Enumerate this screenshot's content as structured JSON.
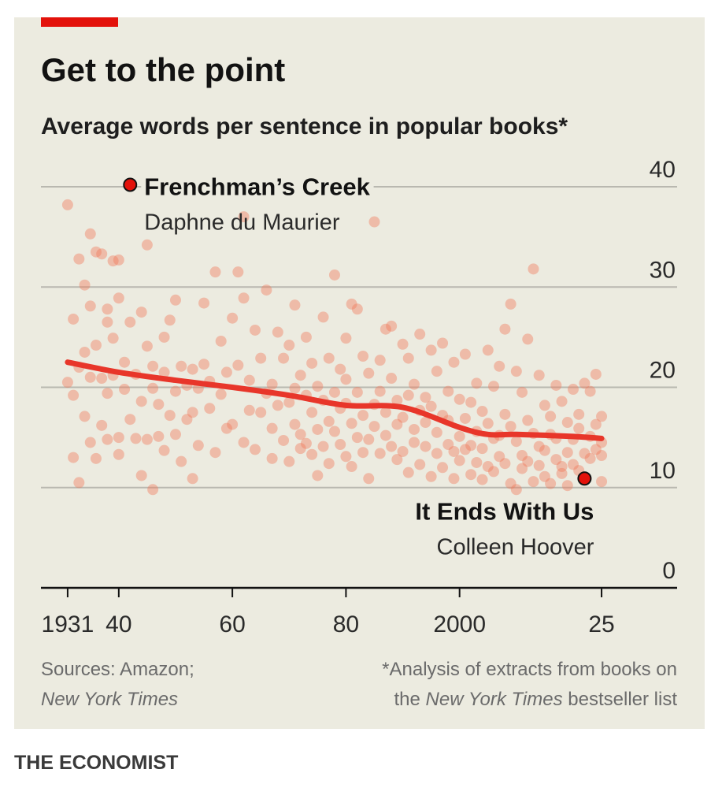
{
  "chart_data": {
    "type": "scatter",
    "title": "Get to the point",
    "subtitle": "Average words per sentence in popular books*",
    "points": {
      "color": "#f0795a",
      "x": [
        1931,
        1931,
        1932,
        1932,
        1932,
        1933,
        1933,
        1933,
        1934,
        1934,
        1934,
        1935,
        1935,
        1935,
        1935,
        1936,
        1936,
        1936,
        1937,
        1937,
        1937,
        1938,
        1938,
        1938,
        1938,
        1939,
        1939,
        1939,
        1940,
        1940,
        1940,
        1940,
        1941,
        1941,
        1942,
        1942,
        1943,
        1943,
        1944,
        1944,
        1944,
        1945,
        1945,
        1945,
        1946,
        1946,
        1946,
        1947,
        1947,
        1948,
        1948,
        1948,
        1949,
        1949,
        1950,
        1950,
        1950,
        1951,
        1951,
        1952,
        1952,
        1953,
        1953,
        1953,
        1954,
        1954,
        1955,
        1955,
        1956,
        1956,
        1957,
        1957,
        1958,
        1958,
        1959,
        1959,
        1960,
        1960,
        1961,
        1961,
        1962,
        1962,
        1962,
        1963,
        1963,
        1964,
        1964,
        1965,
        1965,
        1966,
        1966,
        1967,
        1967,
        1967,
        1968,
        1968,
        1969,
        1969,
        1970,
        1970,
        1970,
        1971,
        1971,
        1971,
        1972,
        1972,
        1972,
        1973,
        1973,
        1973,
        1974,
        1974,
        1974,
        1975,
        1975,
        1975,
        1976,
        1976,
        1976,
        1977,
        1977,
        1977,
        1978,
        1978,
        1978,
        1979,
        1979,
        1979,
        1980,
        1980,
        1980,
        1980,
        1981,
        1981,
        1981,
        1982,
        1982,
        1982,
        1983,
        1983,
        1983,
        1984,
        1984,
        1984,
        1985,
        1985,
        1985,
        1986,
        1986,
        1986,
        1987,
        1987,
        1987,
        1988,
        1988,
        1988,
        1989,
        1989,
        1989,
        1990,
        1990,
        1990,
        1991,
        1991,
        1991,
        1992,
        1992,
        1992,
        1993,
        1993,
        1993,
        1994,
        1994,
        1994,
        1995,
        1995,
        1995,
        1996,
        1996,
        1996,
        1997,
        1997,
        1997,
        1998,
        1998,
        1998,
        1999,
        1999,
        1999,
        2000,
        2000,
        2000,
        2001,
        2001,
        2001,
        2002,
        2002,
        2002,
        2003,
        2003,
        2003,
        2004,
        2004,
        2004,
        2005,
        2005,
        2005,
        2006,
        2006,
        2006,
        2007,
        2007,
        2007,
        2008,
        2008,
        2008,
        2009,
        2009,
        2009,
        2010,
        2010,
        2010,
        2011,
        2011,
        2011,
        2012,
        2012,
        2012,
        2013,
        2013,
        2013,
        2014,
        2014,
        2014,
        2015,
        2015,
        2015,
        2016,
        2016,
        2016,
        2017,
        2017,
        2017,
        2018,
        2018,
        2018,
        2019,
        2019,
        2019,
        2020,
        2020,
        2020,
        2021,
        2021,
        2021,
        2022,
        2022,
        2023,
        2023,
        2023,
        2024,
        2024,
        2024,
        2025,
        2025,
        2025,
        2025
      ],
      "values": [
        38.2,
        20.5,
        26.8,
        13,
        19.2,
        32.8,
        10.5,
        22,
        30.2,
        17.1,
        23.5,
        35.3,
        28.1,
        14.5,
        21,
        33.5,
        24.2,
        12.9,
        33.3,
        16.2,
        20.9,
        26.5,
        19.4,
        14.8,
        27.8,
        32.6,
        24.9,
        21.2,
        32.7,
        28.9,
        13.3,
        15,
        19.8,
        22.5,
        26.5,
        16.8,
        14.9,
        21.3,
        27.5,
        11.2,
        18.6,
        34.2,
        24.1,
        14.8,
        9.8,
        19.9,
        22.1,
        18.3,
        15.1,
        25,
        13.7,
        21.5,
        26.7,
        17.2,
        28.7,
        19.6,
        15.3,
        22.1,
        12.6,
        20.2,
        16.8,
        17.5,
        10.9,
        21.8,
        19.9,
        14.2,
        28.4,
        22.3,
        20.6,
        17.9,
        31.5,
        13.5,
        19.3,
        24.6,
        21.5,
        15.9,
        26.9,
        16.3,
        31.5,
        22.2,
        37,
        14.5,
        28.9,
        20.7,
        17.7,
        25.7,
        13.8,
        22.9,
        17.5,
        29.7,
        19.4,
        20.3,
        15.9,
        12.9,
        25.5,
        18.2,
        22.9,
        14.7,
        24.2,
        18.5,
        12.6,
        28.2,
        16.3,
        19.9,
        21.2,
        15.3,
        13.9,
        25,
        19.2,
        14.4,
        17.5,
        13.3,
        22.4,
        20.1,
        15.8,
        11.2,
        27,
        18.7,
        14.1,
        22.9,
        16.6,
        12.4,
        31.2,
        19.5,
        15.6,
        21.8,
        14.3,
        17.9,
        24.9,
        13.1,
        18.4,
        20.8,
        28.3,
        16.4,
        12.1,
        27.8,
        19.5,
        15,
        23.1,
        17.2,
        13.5,
        21.4,
        14.8,
        10.9,
        36.5,
        18.3,
        16.1,
        19.6,
        13.4,
        22.7,
        25.8,
        15.2,
        17.5,
        26.1,
        20.9,
        14.1,
        18.7,
        16.3,
        12.8,
        24.3,
        17,
        13.6,
        22.9,
        19.2,
        11.5,
        20.3,
        15.8,
        14.5,
        25.3,
        17.7,
        12.3,
        19,
        14.1,
        16.5,
        23.7,
        18.1,
        11.1,
        21.6,
        15.5,
        13.4,
        24.4,
        17.2,
        12,
        19.6,
        14.3,
        16.7,
        22.5,
        13.6,
        10.9,
        18.8,
        15.1,
        12.7,
        23.3,
        16.9,
        13.8,
        18.5,
        14.2,
        11.3,
        20.4,
        15.6,
        12.5,
        17.6,
        13.9,
        10.8,
        23.7,
        16.4,
        12.1,
        20.1,
        14.9,
        11.6,
        22.1,
        15.2,
        13.1,
        25.8,
        17.3,
        12.4,
        28.3,
        16.1,
        10.4,
        21.6,
        14.6,
        9.8,
        19.5,
        13.2,
        11.9,
        24.8,
        16.7,
        12.6,
        31.8,
        15.4,
        10.6,
        21.2,
        14.1,
        12.2,
        18.2,
        13.7,
        11.1,
        17.1,
        15.3,
        10.4,
        20.2,
        14.9,
        12.8,
        18.6,
        12.1,
        11.4,
        16.5,
        13.5,
        10.2,
        19.8,
        14.8,
        12.3,
        17.3,
        15.9,
        11.7,
        20.4,
        13.4,
        19.6,
        15.1,
        12.9,
        21.3,
        16.3,
        13.8,
        17.1,
        14.5,
        10.6,
        13.2
      ]
    },
    "trend": {
      "color": "#e8362a",
      "x": [
        1931,
        1940,
        1950,
        1960,
        1970,
        1980,
        1990,
        2000,
        2005,
        2010,
        2020,
        2025
      ],
      "values": [
        22.5,
        21.5,
        20.7,
        20,
        19.2,
        18.2,
        18,
        16,
        15.3,
        15.3,
        15.1,
        14.9
      ]
    },
    "annotations": [
      {
        "x": 1942,
        "y": 40.2,
        "title": "Frenchman’s Creek",
        "subtitle": "Daphne du Maurier",
        "color": "#e3120b"
      },
      {
        "x": 2022,
        "y": 10.9,
        "title": "It Ends With Us",
        "subtitle": "Colleen Hoover",
        "color": "#e3120b"
      }
    ],
    "xlim": [
      1926.3,
      2038.3
    ],
    "xticks": [
      1931,
      {
        "value": 1940,
        "label": "40"
      },
      {
        "value": 1960,
        "label": "60"
      },
      {
        "value": 1980,
        "label": "80"
      },
      2000,
      {
        "value": 2025,
        "label": "25"
      }
    ],
    "ylim": [
      0,
      40
    ],
    "yticks": [
      0,
      10,
      20,
      30,
      40
    ],
    "grid": true,
    "source": {
      "lead": "Sources: Amazon;",
      "italic": "New York Times"
    },
    "note": {
      "line1": "*Analysis of extracts from books on",
      "pre": "the",
      "italic": "New York Times",
      "post": "bestseller list"
    },
    "brand": "THE ECONOMIST"
  }
}
